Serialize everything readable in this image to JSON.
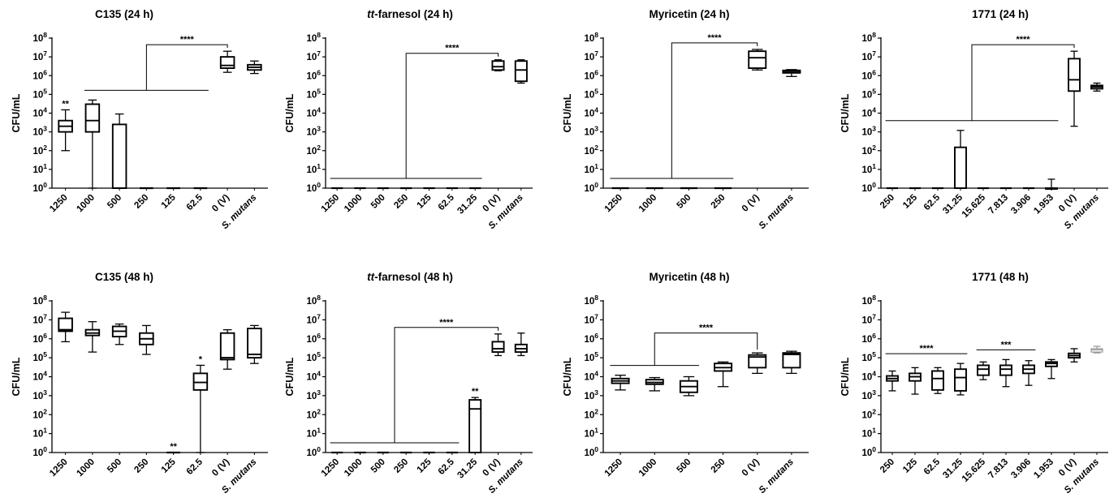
{
  "figure": {
    "title": "",
    "shared_ylabel": "CFU/mL",
    "ytick_exponents": [
      0,
      1,
      2,
      3,
      4,
      5,
      6,
      7,
      8
    ]
  },
  "chart_data": [
    {
      "type": "box",
      "title_parts": [
        {
          "text": "C135 (24 h)",
          "italic": false
        }
      ],
      "ylabel": "CFU/mL",
      "yscale": "log10",
      "ylim": [
        1,
        100000000
      ],
      "categories": [
        "1250",
        "1000",
        "500",
        "250",
        "125",
        "62.5",
        "0 (V)",
        "S. mutans"
      ],
      "boxes": [
        [
          100,
          1000,
          2000,
          4000,
          15000
        ],
        [
          1,
          1000,
          4000,
          30000,
          50000
        ],
        [
          1,
          1,
          1,
          2500,
          9000
        ],
        [
          1,
          1,
          1,
          1,
          1
        ],
        [
          1,
          1,
          1,
          1,
          1
        ],
        [
          1,
          1,
          1,
          1,
          1
        ],
        [
          1500000,
          2500000,
          3500000,
          10000000,
          20000000
        ],
        [
          1300000,
          2000000,
          2800000,
          3800000,
          6000000
        ]
      ],
      "annotations": [
        {
          "text": "**",
          "category": 0
        }
      ],
      "brackets": [
        {
          "label": "****",
          "group": [
            1,
            5
          ],
          "target": 6
        }
      ]
    },
    {
      "type": "box",
      "title_parts": [
        {
          "text": "tt",
          "italic": true
        },
        {
          "text": "-farnesol (24 h)",
          "italic": false
        }
      ],
      "ylabel": "CFU/mL",
      "yscale": "log10",
      "ylim": [
        1,
        100000000
      ],
      "categories": [
        "1250",
        "1000",
        "500",
        "250",
        "125",
        "62.5",
        "31.25",
        "0 (V)",
        "S. mutans"
      ],
      "boxes": [
        [
          1,
          1,
          1,
          1,
          1
        ],
        [
          1,
          1,
          1,
          1,
          1
        ],
        [
          1,
          1,
          1,
          1,
          1
        ],
        [
          1,
          1,
          1,
          1,
          1
        ],
        [
          1,
          1,
          1,
          1,
          1
        ],
        [
          1,
          1,
          1,
          1,
          1
        ],
        [
          1,
          1,
          1,
          1,
          1
        ],
        [
          1800000,
          2000000,
          3000000,
          6000000,
          7000000
        ],
        [
          400000,
          500000,
          2000000,
          6000000,
          7000000
        ]
      ],
      "annotations": [],
      "brackets": [
        {
          "label": "****",
          "group": [
            0,
            6
          ],
          "target": 7
        }
      ]
    },
    {
      "type": "box",
      "title_parts": [
        {
          "text": "Myricetin (24 h)",
          "italic": false
        }
      ],
      "ylabel": "CFU/mL",
      "yscale": "log10",
      "ylim": [
        1,
        100000000
      ],
      "categories": [
        "1250",
        "1000",
        "500",
        "250",
        "0 (V)",
        "S. mutans"
      ],
      "boxes": [
        [
          1,
          1,
          1,
          1,
          1
        ],
        [
          1,
          1,
          1,
          1,
          1
        ],
        [
          1,
          1,
          1,
          1,
          1
        ],
        [
          1,
          1,
          1,
          1,
          1
        ],
        [
          2000000,
          2500000,
          9000000,
          20000000,
          25000000
        ],
        [
          900000,
          1400000,
          1700000,
          1900000,
          2100000
        ]
      ],
      "annotations": [],
      "brackets": [
        {
          "label": "****",
          "group": [
            0,
            3
          ],
          "target": 4
        }
      ]
    },
    {
      "type": "box",
      "title_parts": [
        {
          "text": "1771 (24 h)",
          "italic": false
        }
      ],
      "ylabel": "CFU/mL",
      "yscale": "log10",
      "ylim": [
        1,
        100000000
      ],
      "categories": [
        "250",
        "125",
        "62.5",
        "31.25",
        "15.625",
        "7.813",
        "3.906",
        "1.953",
        "0 (V)",
        "S. mutans"
      ],
      "boxes": [
        [
          1,
          1,
          1,
          1,
          1
        ],
        [
          1,
          1,
          1,
          1,
          1
        ],
        [
          1,
          1,
          1,
          1,
          1
        ],
        [
          1,
          1,
          1,
          150,
          1200
        ],
        [
          1,
          1,
          1,
          1,
          1
        ],
        [
          1,
          1,
          1,
          1,
          1
        ],
        [
          1,
          1,
          1,
          1,
          1
        ],
        [
          1,
          1,
          1,
          1,
          3
        ],
        [
          2000,
          150000,
          600000,
          8000000,
          20000000
        ],
        [
          150000,
          200000,
          250000,
          300000,
          400000
        ]
      ],
      "annotations": [],
      "brackets": [
        {
          "label": "****",
          "group": [
            0,
            7
          ],
          "target": 8
        }
      ]
    },
    {
      "type": "box",
      "title_parts": [
        {
          "text": "C135 (48 h)",
          "italic": false
        }
      ],
      "ylabel": "CFU/mL",
      "yscale": "log10",
      "ylim": [
        1,
        100000000
      ],
      "categories": [
        "1250",
        "1000",
        "500",
        "250",
        "125",
        "62.5",
        "0 (V)",
        "S. mutans"
      ],
      "boxes": [
        [
          700000,
          2500000,
          3000000,
          12000000,
          25000000
        ],
        [
          200000,
          1500000,
          2000000,
          3000000,
          8000000
        ],
        [
          500000,
          1300000,
          2500000,
          4500000,
          6000000
        ],
        [
          150000,
          500000,
          1000000,
          2000000,
          5000000
        ],
        [
          1,
          1,
          1,
          1,
          1
        ],
        [
          1,
          2000,
          5000,
          15000,
          40000
        ],
        [
          25000,
          80000,
          100000,
          2000000,
          3000000
        ],
        [
          50000,
          100000,
          150000,
          3500000,
          5000000
        ]
      ],
      "annotations": [
        {
          "text": "**",
          "category": 4
        },
        {
          "text": "*",
          "category": 5
        }
      ],
      "brackets": []
    },
    {
      "type": "box",
      "title_parts": [
        {
          "text": "tt",
          "italic": true
        },
        {
          "text": "-farnesol (48 h)",
          "italic": false
        }
      ],
      "ylabel": "CFU/mL",
      "yscale": "log10",
      "ylim": [
        1,
        100000000
      ],
      "categories": [
        "1250",
        "1000",
        "500",
        "250",
        "125",
        "62.5",
        "31.25",
        "0 (V)",
        "S. mutans"
      ],
      "boxes": [
        [
          1,
          1,
          1,
          1,
          1
        ],
        [
          1,
          1,
          1,
          1,
          1
        ],
        [
          1,
          1,
          1,
          1,
          1
        ],
        [
          1,
          1,
          1,
          1,
          1
        ],
        [
          1,
          1,
          1,
          1,
          1
        ],
        [
          1,
          1,
          1,
          1,
          1
        ],
        [
          1,
          1,
          200,
          600,
          800
        ],
        [
          130000,
          200000,
          300000,
          700000,
          1800000
        ],
        [
          130000,
          200000,
          300000,
          500000,
          2000000
        ]
      ],
      "annotations": [
        {
          "text": "**",
          "category": 6
        }
      ],
      "brackets": [
        {
          "label": "****",
          "group": [
            0,
            5
          ],
          "target": 7
        }
      ]
    },
    {
      "type": "box",
      "title_parts": [
        {
          "text": "Myricetin (48 h)",
          "italic": false
        }
      ],
      "ylabel": "CFU/mL",
      "yscale": "log10",
      "ylim": [
        1,
        100000000
      ],
      "categories": [
        "1250",
        "1000",
        "500",
        "250",
        "0 (V)",
        "S. mutans"
      ],
      "boxes": [
        [
          2000,
          4500,
          6000,
          8000,
          12000
        ],
        [
          1800,
          4000,
          5000,
          7000,
          9000
        ],
        [
          1000,
          1500,
          3000,
          6000,
          10000
        ],
        [
          3000,
          20000,
          30000,
          50000,
          60000
        ],
        [
          15000,
          30000,
          110000,
          140000,
          180000
        ],
        [
          15000,
          30000,
          150000,
          180000,
          220000
        ]
      ],
      "annotations": [],
      "brackets": [
        {
          "label": "****",
          "group": [
            0,
            2
          ],
          "target": 4
        }
      ]
    },
    {
      "type": "box",
      "title_parts": [
        {
          "text": "1771 (48 h)",
          "italic": false
        }
      ],
      "ylabel": "CFU/mL",
      "yscale": "log10",
      "ylim": [
        1,
        100000000
      ],
      "categories": [
        "250",
        "125",
        "62.5",
        "31.25",
        "15.625",
        "7.813",
        "3.906",
        "1.953",
        "0 (V)",
        "S. mutans"
      ],
      "boxes": [
        [
          1800,
          6000,
          8000,
          11000,
          20000
        ],
        [
          1200,
          6000,
          10000,
          15000,
          30000
        ],
        [
          1300,
          2000,
          8000,
          20000,
          30000
        ],
        [
          1100,
          1800,
          9000,
          25000,
          50000
        ],
        [
          7000,
          12000,
          25000,
          40000,
          60000
        ],
        [
          3000,
          12000,
          25000,
          40000,
          80000
        ],
        [
          3500,
          15000,
          25000,
          40000,
          70000
        ],
        [
          8000,
          35000,
          50000,
          60000,
          80000
        ],
        [
          60000,
          100000,
          130000,
          170000,
          300000
        ],
        [
          180000,
          200000,
          260000,
          300000,
          400000
        ]
      ],
      "annotations": [],
      "brackets": [
        {
          "label": "****",
          "group": [
            0,
            3
          ],
          "target": null
        },
        {
          "label": "***",
          "group": [
            4,
            6
          ],
          "target": null
        }
      ],
      "faded_categories": [
        9
      ]
    }
  ]
}
